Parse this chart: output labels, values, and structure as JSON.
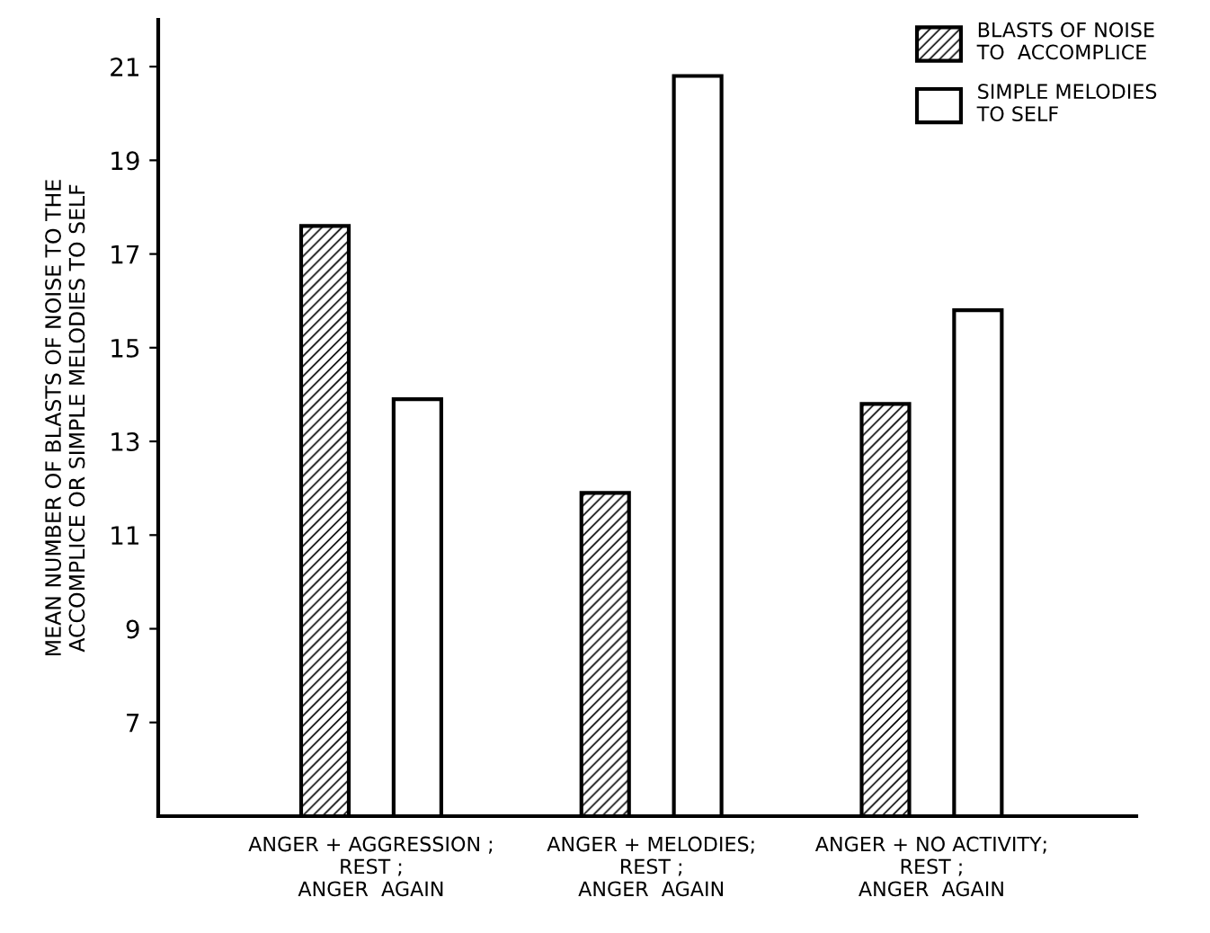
{
  "chart_data": {
    "type": "bar",
    "ylabel": "MEAN NUMBER OF BLASTS OF NOISE TO THE\nACCOMPLICE OR SIMPLE MELODIES TO SELF",
    "categories": [
      "ANGER + AGGRESSION ;\nREST ;\nANGER  AGAIN",
      "ANGER + MELODIES;\nREST ;\nANGER  AGAIN",
      "ANGER + NO ACTIVITY;\nREST ;\nANGER  AGAIN"
    ],
    "series": [
      {
        "name": "BLASTS OF NOISE\nTO  ACCOMPLICE",
        "color": "#000000",
        "values": [
          17.6,
          11.9,
          13.8
        ]
      },
      {
        "name": "SIMPLE MELODIES\nTO SELF",
        "color": "#ffffff",
        "values": [
          13.9,
          20.8,
          15.8
        ]
      }
    ],
    "ylim": [
      5,
      22
    ],
    "yticks": [
      7,
      9,
      11,
      13,
      15,
      17,
      19,
      21
    ],
    "grid": false,
    "legend": "top right"
  }
}
